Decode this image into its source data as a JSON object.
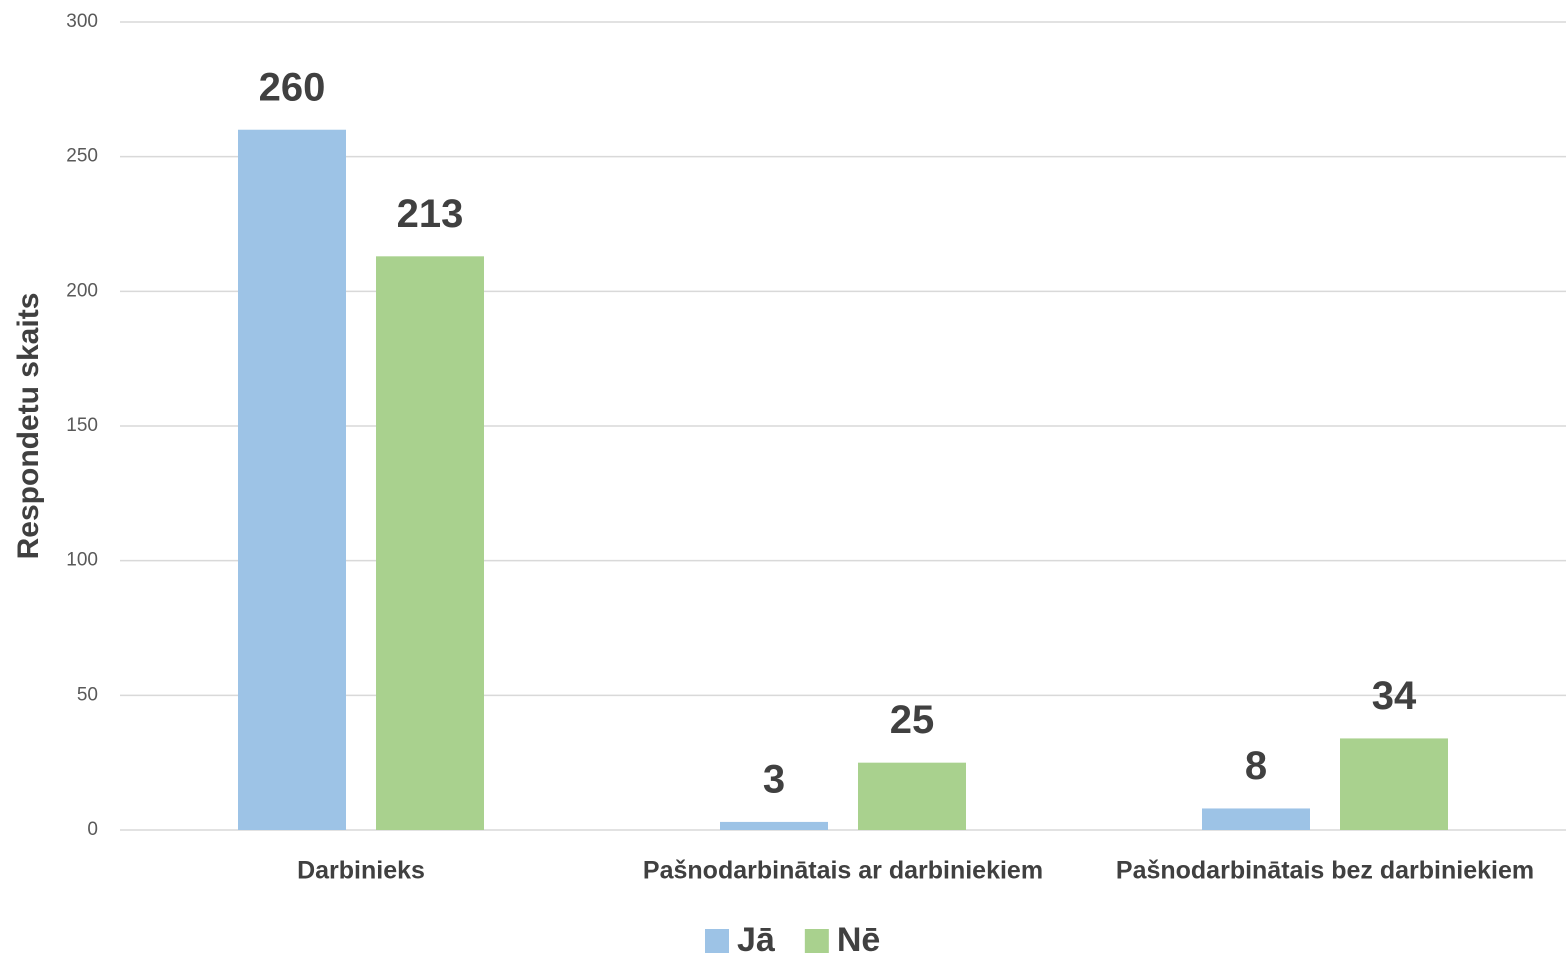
{
  "chart_data": {
    "type": "bar",
    "y_label": "Respondetu skaits",
    "categories": [
      "Darbinieks",
      "Pašnodarbinātais ar darbiniekiem",
      "Pašnodarbinātais bez darbiniekiem"
    ],
    "series": [
      {
        "name": "Jā",
        "color": "#9dc3e6",
        "values": [
          260,
          3,
          8
        ]
      },
      {
        "name": "Nē",
        "color": "#a9d18e",
        "values": [
          213,
          25,
          34
        ]
      }
    ],
    "ylim": [
      0,
      300
    ],
    "yticks": [
      0,
      50,
      100,
      150,
      200,
      250,
      300
    ],
    "grid": true,
    "legend": "bottom"
  }
}
